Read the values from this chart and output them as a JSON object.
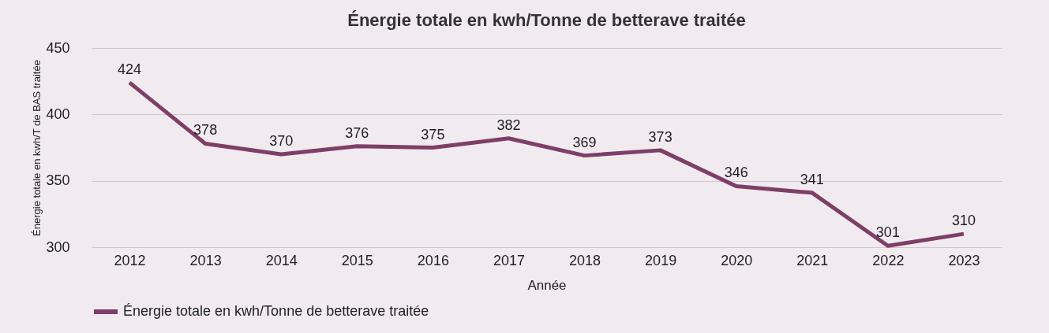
{
  "chart_data": {
    "type": "line",
    "title": "Énergie totale en kwh/Tonne de betterave traitée",
    "xlabel": "Année",
    "ylabel": "Énergie totale en kwh/T de BAS traitée",
    "categories": [
      "2012",
      "2013",
      "2014",
      "2015",
      "2016",
      "2017",
      "2018",
      "2019",
      "2020",
      "2021",
      "2022",
      "2023"
    ],
    "series": [
      {
        "name": "Énergie totale en kwh/Tonne de betterave traitée",
        "color": "#7d3f67",
        "values": [
          424,
          378,
          370,
          376,
          375,
          382,
          369,
          373,
          346,
          341,
          301,
          310
        ]
      }
    ],
    "ylim": [
      300,
      450
    ],
    "yticks": [
      300,
      350,
      400,
      450
    ],
    "grid": "y",
    "legend": "bottom left",
    "data_labels": true,
    "marker": "none",
    "line_style": "solid"
  }
}
